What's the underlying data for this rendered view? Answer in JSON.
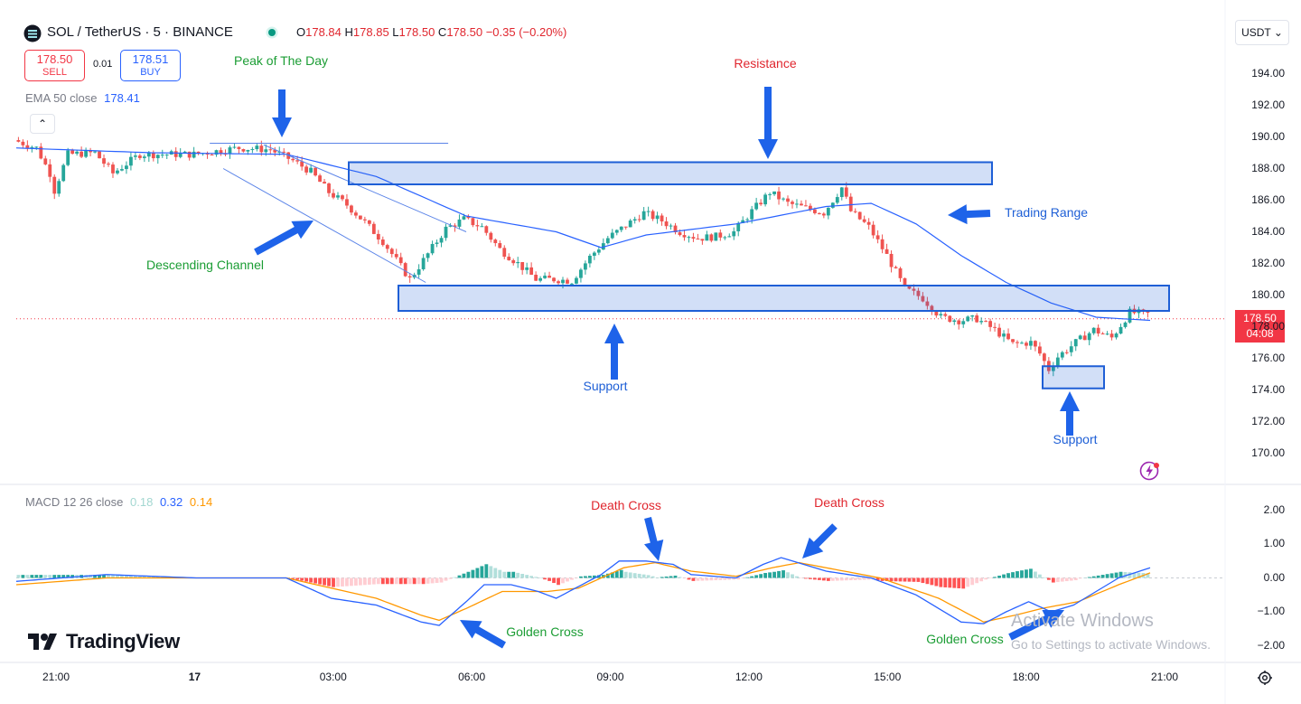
{
  "header": {
    "symbol": "SOL / TetherUS · 5 · BINANCE",
    "open_label": "O",
    "open": "178.84",
    "high_label": "H",
    "high": "178.85",
    "low_label": "L",
    "low": "178.50",
    "close_label": "C",
    "close": "178.50",
    "change": "−0.35 (−0.20%)"
  },
  "trade": {
    "sell_price": "178.50",
    "sell_label": "SELL",
    "spread": "0.01",
    "buy_price": "178.51",
    "buy_label": "BUY"
  },
  "ema": {
    "label": "EMA 50 close",
    "value": "178.41"
  },
  "macd": {
    "label": "MACD 12 26 close",
    "hist": "0.18",
    "macd": "0.32",
    "signal": "0.14"
  },
  "currency_button": "USDT ⌄",
  "collapse_glyph": "⌃",
  "price_tag": {
    "price": "178.50",
    "countdown": "04:08"
  },
  "price_axis": [
    "194.00",
    "192.00",
    "190.00",
    "188.00",
    "186.00",
    "184.00",
    "182.00",
    "180.00",
    "178.00",
    "176.00",
    "174.00",
    "172.00",
    "170.00"
  ],
  "macd_axis": [
    "2.00",
    "1.00",
    "0.00",
    "−1.00",
    "−2.00"
  ],
  "time_axis": [
    "21:00",
    "17",
    "03:00",
    "06:00",
    "09:00",
    "12:00",
    "15:00",
    "18:00",
    "21:00"
  ],
  "annotations": {
    "peak": "Peak of The Day",
    "resistance": "Resistance",
    "trading_range": "Trading Range",
    "descending_channel": "Descending Channel",
    "support_1": "Support",
    "support_2": "Support",
    "death_cross_1": "Death Cross",
    "death_cross_2": "Death Cross",
    "golden_cross_1": "Golden Cross",
    "golden_cross_2": "Golden Cross"
  },
  "brand": "TradingView",
  "windows_watermark": {
    "title": "Activate Windows",
    "subtitle": "Go to Settings to activate Windows."
  },
  "colors": {
    "up": "#26a69a",
    "down": "#ef5350",
    "ema": "#2962ff",
    "macd": "#2962ff",
    "signal": "#ff9800",
    "zone": "#1e5fd6",
    "arrow": "#1e63e9"
  },
  "chart_data": {
    "type": "candlestick",
    "price_range": [
      169,
      195
    ],
    "macd_range": [
      -2.3,
      2.3
    ],
    "close_path": [
      [
        0,
        189.8
      ],
      [
        5,
        189.3
      ],
      [
        8,
        187.7
      ],
      [
        9,
        186.6
      ],
      [
        12,
        188.9
      ],
      [
        18,
        189.0
      ],
      [
        22,
        187.7
      ],
      [
        28,
        188.9
      ],
      [
        40,
        188.9
      ],
      [
        50,
        189.3
      ],
      [
        57,
        189.2
      ],
      [
        62,
        188.5
      ],
      [
        66,
        187.8
      ],
      [
        70,
        186.5
      ],
      [
        74,
        185.7
      ],
      [
        78,
        184.6
      ],
      [
        82,
        183.4
      ],
      [
        86,
        181.8
      ],
      [
        88,
        181.0
      ],
      [
        92,
        182.6
      ],
      [
        96,
        184.2
      ],
      [
        100,
        184.8
      ],
      [
        104,
        184.3
      ],
      [
        108,
        182.9
      ],
      [
        112,
        182.0
      ],
      [
        116,
        181.0
      ],
      [
        120,
        181.0
      ],
      [
        124,
        180.9
      ],
      [
        128,
        182.4
      ],
      [
        132,
        183.6
      ],
      [
        136,
        184.4
      ],
      [
        140,
        185.2
      ],
      [
        144,
        184.7
      ],
      [
        148,
        184.0
      ],
      [
        152,
        183.6
      ],
      [
        156,
        183.7
      ],
      [
        160,
        184.0
      ],
      [
        164,
        185.3
      ],
      [
        168,
        186.5
      ],
      [
        172,
        185.8
      ],
      [
        176,
        185.5
      ],
      [
        180,
        185.2
      ],
      [
        184,
        186.8
      ],
      [
        186,
        185.3
      ],
      [
        190,
        184.3
      ],
      [
        194,
        182.5
      ],
      [
        198,
        180.4
      ],
      [
        202,
        179.8
      ],
      [
        206,
        178.6
      ],
      [
        210,
        178.4
      ],
      [
        214,
        178.5
      ],
      [
        218,
        177.8
      ],
      [
        222,
        176.9
      ],
      [
        226,
        177.0
      ],
      [
        228,
        176.3
      ],
      [
        230,
        175.3
      ],
      [
        232,
        176.1
      ],
      [
        236,
        177.0
      ],
      [
        240,
        177.8
      ],
      [
        244,
        177.3
      ],
      [
        248,
        178.9
      ],
      [
        252,
        178.8
      ]
    ],
    "ema_path": [
      [
        0,
        189.3
      ],
      [
        30,
        189.0
      ],
      [
        60,
        188.9
      ],
      [
        80,
        187.5
      ],
      [
        100,
        185.0
      ],
      [
        120,
        184.0
      ],
      [
        130,
        183.0
      ],
      [
        140,
        183.8
      ],
      [
        160,
        184.5
      ],
      [
        180,
        185.6
      ],
      [
        190,
        185.8
      ],
      [
        200,
        184.5
      ],
      [
        210,
        182.5
      ],
      [
        220,
        180.8
      ],
      [
        230,
        179.5
      ],
      [
        240,
        178.6
      ],
      [
        252,
        178.4
      ]
    ],
    "channel_upper": [
      [
        55,
        189.5
      ],
      [
        100,
        184.0
      ]
    ],
    "channel_lower": [
      [
        46,
        188.0
      ],
      [
        91,
        180.8
      ]
    ],
    "peak_line": [
      [
        43,
        189.6
      ],
      [
        96,
        189.6
      ]
    ],
    "resistance_zone": [
      187.0,
      188.4
    ],
    "support_zone": [
      179.0,
      180.6
    ],
    "support_zone_2": [
      174.1,
      175.5
    ],
    "macd_line": [
      [
        0,
        -0.1
      ],
      [
        10,
        0.0
      ],
      [
        20,
        0.1
      ],
      [
        40,
        0.0
      ],
      [
        60,
        0.0
      ],
      [
        65,
        -0.3
      ],
      [
        70,
        -0.6
      ],
      [
        80,
        -0.8
      ],
      [
        90,
        -1.3
      ],
      [
        94,
        -1.4
      ],
      [
        100,
        -0.7
      ],
      [
        104,
        -0.2
      ],
      [
        110,
        -0.2
      ],
      [
        116,
        -0.4
      ],
      [
        120,
        -0.6
      ],
      [
        130,
        0.1
      ],
      [
        134,
        0.5
      ],
      [
        140,
        0.5
      ],
      [
        146,
        0.4
      ],
      [
        150,
        0.1
      ],
      [
        160,
        0.0
      ],
      [
        166,
        0.4
      ],
      [
        170,
        0.6
      ],
      [
        180,
        0.2
      ],
      [
        190,
        0.0
      ],
      [
        200,
        -0.5
      ],
      [
        210,
        -1.3
      ],
      [
        215,
        -1.35
      ],
      [
        220,
        -1.0
      ],
      [
        225,
        -0.7
      ],
      [
        230,
        -1.0
      ],
      [
        235,
        -0.8
      ],
      [
        245,
        0.0
      ],
      [
        252,
        0.3
      ]
    ],
    "signal_line": [
      [
        0,
        -0.2
      ],
      [
        20,
        0.0
      ],
      [
        60,
        0.0
      ],
      [
        70,
        -0.3
      ],
      [
        80,
        -0.6
      ],
      [
        90,
        -1.1
      ],
      [
        94,
        -1.25
      ],
      [
        100,
        -0.9
      ],
      [
        108,
        -0.4
      ],
      [
        118,
        -0.4
      ],
      [
        125,
        -0.3
      ],
      [
        135,
        0.3
      ],
      [
        142,
        0.45
      ],
      [
        150,
        0.2
      ],
      [
        160,
        0.05
      ],
      [
        168,
        0.3
      ],
      [
        174,
        0.45
      ],
      [
        184,
        0.2
      ],
      [
        192,
        0.0
      ],
      [
        205,
        -0.6
      ],
      [
        215,
        -1.3
      ],
      [
        222,
        -1.1
      ],
      [
        228,
        -0.9
      ],
      [
        236,
        -0.7
      ],
      [
        245,
        -0.2
      ],
      [
        252,
        0.15
      ]
    ]
  }
}
